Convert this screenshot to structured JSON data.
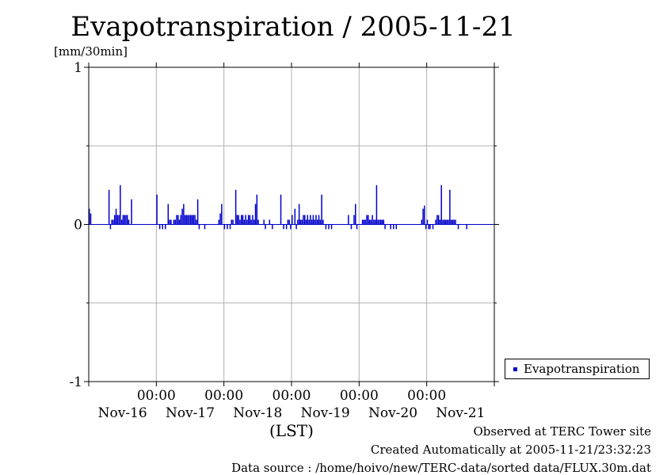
{
  "chart_data": {
    "type": "bar",
    "title": "Evapotranspiration / 2005-11-21",
    "ylabel": "[mm/30min]",
    "xlabel": "(LST)",
    "ylim": [
      -1,
      1
    ],
    "yticks": [
      -1,
      0,
      1
    ],
    "grid": true,
    "legend_position": "right",
    "x_start": "2005-11-16 00:00",
    "x_end": "2005-11-21 24:00",
    "x_tick_labels": [
      {
        "time": "00:00",
        "date": "Nov-16"
      },
      {
        "time": "00:00",
        "date": "Nov-17"
      },
      {
        "time": "00:00",
        "date": "Nov-18"
      },
      {
        "time": "00:00",
        "date": "Nov-19"
      },
      {
        "time": "00:00",
        "date": "Nov-20"
      },
      {
        "time": "00:00",
        "date": "Nov-21"
      }
    ],
    "series": [
      {
        "name": "Evapotranspiration",
        "color": "#0000cc",
        "points": [
          {
            "t": "2005-11-16 00:00",
            "v": 0.1
          },
          {
            "t": "2005-11-16 00:30",
            "v": 0.07
          },
          {
            "t": "2005-11-16 07:00",
            "v": 0.22
          },
          {
            "t": "2005-11-16 07:30",
            "v": -0.03
          },
          {
            "t": "2005-11-16 08:00",
            "v": 0.03
          },
          {
            "t": "2005-11-16 08:30",
            "v": 0.03
          },
          {
            "t": "2005-11-16 09:00",
            "v": 0.06
          },
          {
            "t": "2005-11-16 09:30",
            "v": 0.1
          },
          {
            "t": "2005-11-16 10:00",
            "v": 0.06
          },
          {
            "t": "2005-11-16 10:30",
            "v": 0.06
          },
          {
            "t": "2005-11-16 11:00",
            "v": 0.25
          },
          {
            "t": "2005-11-16 11:30",
            "v": 0.03
          },
          {
            "t": "2005-11-16 12:00",
            "v": 0.06
          },
          {
            "t": "2005-11-16 12:30",
            "v": 0.06
          },
          {
            "t": "2005-11-16 13:00",
            "v": 0.06
          },
          {
            "t": "2005-11-16 13:30",
            "v": 0.06
          },
          {
            "t": "2005-11-16 14:00",
            "v": 0.03
          },
          {
            "t": "2005-11-16 15:00",
            "v": 0.16
          },
          {
            "t": "2005-11-17 00:00",
            "v": 0.19
          },
          {
            "t": "2005-11-17 01:00",
            "v": -0.03
          },
          {
            "t": "2005-11-17 02:00",
            "v": -0.03
          },
          {
            "t": "2005-11-17 03:00",
            "v": -0.03
          },
          {
            "t": "2005-11-17 04:00",
            "v": 0.13
          },
          {
            "t": "2005-11-17 04:30",
            "v": 0.03
          },
          {
            "t": "2005-11-17 05:00",
            "v": 0.03
          },
          {
            "t": "2005-11-17 06:00",
            "v": 0.03
          },
          {
            "t": "2005-11-17 06:30",
            "v": 0.03
          },
          {
            "t": "2005-11-17 07:00",
            "v": 0.06
          },
          {
            "t": "2005-11-17 07:30",
            "v": 0.06
          },
          {
            "t": "2005-11-17 08:00",
            "v": 0.03
          },
          {
            "t": "2005-11-17 08:30",
            "v": 0.06
          },
          {
            "t": "2005-11-17 09:00",
            "v": 0.1
          },
          {
            "t": "2005-11-17 09:30",
            "v": 0.13
          },
          {
            "t": "2005-11-17 10:00",
            "v": 0.06
          },
          {
            "t": "2005-11-17 10:30",
            "v": 0.06
          },
          {
            "t": "2005-11-17 11:00",
            "v": 0.06
          },
          {
            "t": "2005-11-17 11:30",
            "v": 0.06
          },
          {
            "t": "2005-11-17 12:00",
            "v": 0.06
          },
          {
            "t": "2005-11-17 12:30",
            "v": 0.06
          },
          {
            "t": "2005-11-17 13:00",
            "v": 0.06
          },
          {
            "t": "2005-11-17 13:30",
            "v": 0.06
          },
          {
            "t": "2005-11-17 14:00",
            "v": 0.03
          },
          {
            "t": "2005-11-17 14:30",
            "v": 0.16
          },
          {
            "t": "2005-11-17 15:00",
            "v": -0.03
          },
          {
            "t": "2005-11-17 17:00",
            "v": -0.03
          },
          {
            "t": "2005-11-17 22:00",
            "v": 0.03
          },
          {
            "t": "2005-11-17 22:30",
            "v": 0.07
          },
          {
            "t": "2005-11-17 23:00",
            "v": 0.13
          },
          {
            "t": "2005-11-18 00:00",
            "v": -0.03
          },
          {
            "t": "2005-11-18 01:00",
            "v": -0.03
          },
          {
            "t": "2005-11-18 02:00",
            "v": -0.03
          },
          {
            "t": "2005-11-18 02:30",
            "v": 0.03
          },
          {
            "t": "2005-11-18 03:00",
            "v": 0.03
          },
          {
            "t": "2005-11-18 04:00",
            "v": 0.22
          },
          {
            "t": "2005-11-18 04:30",
            "v": 0.06
          },
          {
            "t": "2005-11-18 05:00",
            "v": 0.06
          },
          {
            "t": "2005-11-18 05:30",
            "v": 0.03
          },
          {
            "t": "2005-11-18 06:00",
            "v": 0.06
          },
          {
            "t": "2005-11-18 06:30",
            "v": 0.06
          },
          {
            "t": "2005-11-18 07:00",
            "v": 0.03
          },
          {
            "t": "2005-11-18 07:30",
            "v": 0.06
          },
          {
            "t": "2005-11-18 08:00",
            "v": 0.03
          },
          {
            "t": "2005-11-18 08:30",
            "v": 0.06
          },
          {
            "t": "2005-11-18 09:00",
            "v": 0.06
          },
          {
            "t": "2005-11-18 09:30",
            "v": 0.03
          },
          {
            "t": "2005-11-18 10:00",
            "v": 0.06
          },
          {
            "t": "2005-11-18 10:30",
            "v": 0.03
          },
          {
            "t": "2005-11-18 11:00",
            "v": 0.13
          },
          {
            "t": "2005-11-18 11:30",
            "v": 0.19
          },
          {
            "t": "2005-11-18 12:00",
            "v": 0.03
          },
          {
            "t": "2005-11-18 14:00",
            "v": 0.03
          },
          {
            "t": "2005-11-18 14:30",
            "v": -0.03
          },
          {
            "t": "2005-11-18 16:00",
            "v": 0.03
          },
          {
            "t": "2005-11-18 17:00",
            "v": -0.03
          },
          {
            "t": "2005-11-18 20:00",
            "v": 0.19
          },
          {
            "t": "2005-11-18 21:00",
            "v": -0.03
          },
          {
            "t": "2005-11-18 22:00",
            "v": -0.03
          },
          {
            "t": "2005-11-18 22:30",
            "v": 0.03
          },
          {
            "t": "2005-11-18 23:00",
            "v": 0.03
          },
          {
            "t": "2005-11-18 23:30",
            "v": -0.03
          },
          {
            "t": "2005-11-19 00:00",
            "v": 0.06
          },
          {
            "t": "2005-11-19 01:00",
            "v": 0.1
          },
          {
            "t": "2005-11-19 01:30",
            "v": -0.03
          },
          {
            "t": "2005-11-19 02:00",
            "v": 0.03
          },
          {
            "t": "2005-11-19 02:30",
            "v": 0.13
          },
          {
            "t": "2005-11-19 03:00",
            "v": 0.03
          },
          {
            "t": "2005-11-19 03:30",
            "v": 0.03
          },
          {
            "t": "2005-11-19 04:00",
            "v": 0.06
          },
          {
            "t": "2005-11-19 04:30",
            "v": 0.06
          },
          {
            "t": "2005-11-19 05:00",
            "v": 0.03
          },
          {
            "t": "2005-11-19 05:30",
            "v": 0.06
          },
          {
            "t": "2005-11-19 06:00",
            "v": 0.03
          },
          {
            "t": "2005-11-19 06:30",
            "v": 0.06
          },
          {
            "t": "2005-11-19 07:00",
            "v": 0.03
          },
          {
            "t": "2005-11-19 07:30",
            "v": 0.06
          },
          {
            "t": "2005-11-19 08:00",
            "v": 0.03
          },
          {
            "t": "2005-11-19 08:30",
            "v": 0.06
          },
          {
            "t": "2005-11-19 09:00",
            "v": 0.03
          },
          {
            "t": "2005-11-19 09:30",
            "v": 0.06
          },
          {
            "t": "2005-11-19 10:00",
            "v": 0.03
          },
          {
            "t": "2005-11-19 10:30",
            "v": 0.19
          },
          {
            "t": "2005-11-19 11:00",
            "v": 0.03
          },
          {
            "t": "2005-11-19 12:00",
            "v": -0.03
          },
          {
            "t": "2005-11-19 13:00",
            "v": -0.03
          },
          {
            "t": "2005-11-19 14:00",
            "v": -0.03
          },
          {
            "t": "2005-11-19 20:00",
            "v": 0.06
          },
          {
            "t": "2005-11-19 21:00",
            "v": -0.03
          },
          {
            "t": "2005-11-19 22:00",
            "v": 0.06
          },
          {
            "t": "2005-11-19 22:30",
            "v": 0.13
          },
          {
            "t": "2005-11-19 23:00",
            "v": -0.03
          },
          {
            "t": "2005-11-20 01:00",
            "v": 0.03
          },
          {
            "t": "2005-11-20 01:30",
            "v": 0.03
          },
          {
            "t": "2005-11-20 02:00",
            "v": 0.03
          },
          {
            "t": "2005-11-20 02:30",
            "v": 0.06
          },
          {
            "t": "2005-11-20 03:00",
            "v": 0.06
          },
          {
            "t": "2005-11-20 03:30",
            "v": 0.03
          },
          {
            "t": "2005-11-20 04:00",
            "v": 0.03
          },
          {
            "t": "2005-11-20 04:30",
            "v": 0.06
          },
          {
            "t": "2005-11-20 05:00",
            "v": 0.03
          },
          {
            "t": "2005-11-20 05:30",
            "v": 0.03
          },
          {
            "t": "2005-11-20 06:00",
            "v": 0.25
          },
          {
            "t": "2005-11-20 06:30",
            "v": 0.03
          },
          {
            "t": "2005-11-20 07:00",
            "v": 0.03
          },
          {
            "t": "2005-11-20 07:30",
            "v": 0.03
          },
          {
            "t": "2005-11-20 08:00",
            "v": 0.03
          },
          {
            "t": "2005-11-20 08:30",
            "v": 0.03
          },
          {
            "t": "2005-11-20 09:00",
            "v": -0.03
          },
          {
            "t": "2005-11-20 11:00",
            "v": -0.03
          },
          {
            "t": "2005-11-20 12:00",
            "v": -0.03
          },
          {
            "t": "2005-11-20 13:00",
            "v": -0.03
          },
          {
            "t": "2005-11-20 22:00",
            "v": 0.03
          },
          {
            "t": "2005-11-20 22:30",
            "v": 0.1
          },
          {
            "t": "2005-11-20 23:00",
            "v": 0.12
          },
          {
            "t": "2005-11-20 23:30",
            "v": -0.03
          },
          {
            "t": "2005-11-21 00:00",
            "v": 0.03
          },
          {
            "t": "2005-11-21 00:30",
            "v": -0.03
          },
          {
            "t": "2005-11-21 01:00",
            "v": -0.03
          },
          {
            "t": "2005-11-21 02:00",
            "v": -0.03
          },
          {
            "t": "2005-11-21 03:00",
            "v": 0.03
          },
          {
            "t": "2005-11-21 03:30",
            "v": 0.06
          },
          {
            "t": "2005-11-21 04:00",
            "v": 0.06
          },
          {
            "t": "2005-11-21 04:30",
            "v": 0.03
          },
          {
            "t": "2005-11-21 05:00",
            "v": 0.25
          },
          {
            "t": "2005-11-21 05:30",
            "v": 0.03
          },
          {
            "t": "2005-11-21 06:00",
            "v": 0.03
          },
          {
            "t": "2005-11-21 06:30",
            "v": 0.03
          },
          {
            "t": "2005-11-21 07:00",
            "v": 0.03
          },
          {
            "t": "2005-11-21 07:30",
            "v": 0.03
          },
          {
            "t": "2005-11-21 08:00",
            "v": 0.22
          },
          {
            "t": "2005-11-21 08:30",
            "v": 0.03
          },
          {
            "t": "2005-11-21 09:00",
            "v": 0.03
          },
          {
            "t": "2005-11-21 09:30",
            "v": 0.03
          },
          {
            "t": "2005-11-21 10:00",
            "v": 0.03
          },
          {
            "t": "2005-11-21 11:00",
            "v": -0.03
          },
          {
            "t": "2005-11-21 14:00",
            "v": -0.03
          }
        ]
      }
    ]
  },
  "footer": {
    "line1": "Observed at TERC Tower site",
    "line2": "Created Automatically at 2005-11-21/23:32:23",
    "line3": "Data source : /home/hoivo/new/TERC-data/sorted data/FLUX.30m.dat"
  }
}
